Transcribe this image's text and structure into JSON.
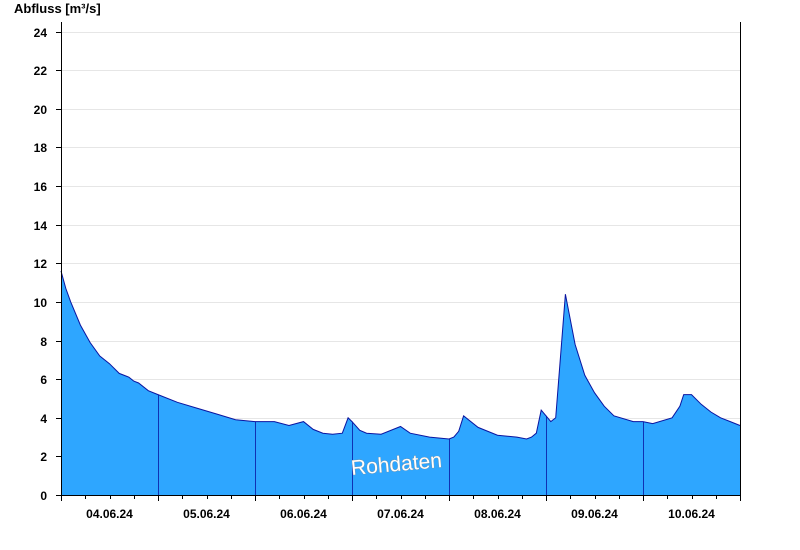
{
  "chart_data": {
    "type": "area",
    "ylabel": "Abfluss [m³/s]",
    "ylim": [
      0,
      24.5
    ],
    "yticks": [
      0,
      2,
      4,
      6,
      8,
      10,
      12,
      14,
      16,
      18,
      20,
      22,
      24
    ],
    "xlim": [
      0,
      7
    ],
    "day_boundaries": [
      1,
      2,
      3,
      4,
      5,
      6
    ],
    "xticks": [
      {
        "x": 0.5,
        "label": "04.06.24"
      },
      {
        "x": 1.5,
        "label": "05.06.24"
      },
      {
        "x": 2.5,
        "label": "06.06.24"
      },
      {
        "x": 3.5,
        "label": "07.06.24"
      },
      {
        "x": 4.5,
        "label": "08.06.24"
      },
      {
        "x": 5.5,
        "label": "09.06.24"
      },
      {
        "x": 6.5,
        "label": "10.06.24"
      }
    ],
    "grid": true,
    "watermark": "Rohdaten",
    "colors": {
      "fill": "#2ea6ff",
      "line": "#0a14a0",
      "grid": "#e6e6e6"
    },
    "series": [
      {
        "x": [
          0,
          0.05,
          0.1,
          0.2,
          0.3,
          0.4,
          0.5,
          0.6,
          0.7,
          0.75,
          0.8,
          0.9,
          1.0,
          1.2,
          1.4,
          1.6,
          1.8,
          2.0,
          2.2,
          2.35,
          2.5,
          2.6,
          2.7,
          2.8,
          2.9,
          2.96,
          3.0,
          3.08,
          3.15,
          3.3,
          3.5,
          3.6,
          3.8,
          4.0,
          4.05,
          4.1,
          4.15,
          4.3,
          4.5,
          4.7,
          4.8,
          4.85,
          4.9,
          4.95,
          5.0,
          5.05,
          5.1,
          5.2,
          5.3,
          5.4,
          5.5,
          5.6,
          5.7,
          5.9,
          6.0,
          6.1,
          6.3,
          6.38,
          6.42,
          6.5,
          6.6,
          6.7,
          6.8,
          6.9,
          7.0
        ],
        "y": [
          11.6,
          10.7,
          10.0,
          8.8,
          7.9,
          7.2,
          6.8,
          6.3,
          6.1,
          5.9,
          5.8,
          5.4,
          5.2,
          4.8,
          4.5,
          4.2,
          3.9,
          3.8,
          3.8,
          3.6,
          3.8,
          3.4,
          3.2,
          3.15,
          3.2,
          4.0,
          3.8,
          3.35,
          3.2,
          3.15,
          3.55,
          3.2,
          3.0,
          2.9,
          3.0,
          3.3,
          4.1,
          3.5,
          3.1,
          3.0,
          2.9,
          3.0,
          3.2,
          4.4,
          4.1,
          3.8,
          4.0,
          10.4,
          7.8,
          6.2,
          5.3,
          4.6,
          4.1,
          3.8,
          3.8,
          3.7,
          4.0,
          4.6,
          5.2,
          5.2,
          4.7,
          4.3,
          4.0,
          3.8,
          3.6
        ]
      }
    ]
  }
}
